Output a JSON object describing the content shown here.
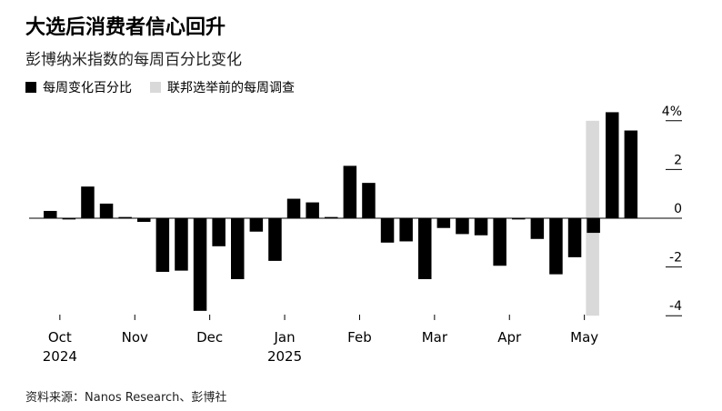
{
  "title": "大选后消费者信心回升",
  "subtitle": "彭博纳米指数的每周百分比变化",
  "source": "资料来源：Nanos Research、彭博社",
  "legend": [
    {
      "label": "每周变化百分比",
      "color": "#000000"
    },
    {
      "label": "联邦选举前的每周调查",
      "color": "#d9d9d9"
    }
  ],
  "chart_data": {
    "type": "bar",
    "title": "大选后消费者信心回升",
    "subtitle": "彭博纳米指数的每周百分比变化",
    "xlabel": "",
    "ylabel": "",
    "ylim": [
      -4.2,
      4.6
    ],
    "y_ticks": [
      4,
      2,
      0,
      -2,
      -4
    ],
    "y_tick_labels": [
      "4%",
      "2",
      "0",
      "-2",
      "-4"
    ],
    "y_axis_side": "right",
    "x_tick_labels": [
      {
        "label": "Oct",
        "year": "2024",
        "week_index": 1
      },
      {
        "label": "Nov",
        "year": "",
        "week_index": 5
      },
      {
        "label": "Dec",
        "year": "",
        "week_index": 9
      },
      {
        "label": "Jan",
        "year": "2025",
        "week_index": 13
      },
      {
        "label": "Feb",
        "year": "",
        "week_index": 17
      },
      {
        "label": "Mar",
        "year": "",
        "week_index": 21
      },
      {
        "label": "Apr",
        "year": "",
        "week_index": 25
      },
      {
        "label": "May",
        "year": "",
        "week_index": 29
      }
    ],
    "series": [
      {
        "name": "每周变化百分比",
        "color": "#000000",
        "values": [
          0.3,
          -0.05,
          1.3,
          0.6,
          0.05,
          -0.15,
          -2.2,
          -2.15,
          -3.8,
          -1.15,
          -2.5,
          -0.55,
          -1.75,
          0.8,
          0.65,
          0.05,
          2.15,
          1.45,
          -1.0,
          -0.95,
          -2.5,
          -0.4,
          -0.65,
          -0.7,
          -1.95,
          -0.05,
          -0.85,
          -2.3,
          -1.6,
          -0.6,
          4.35,
          3.6
        ]
      },
      {
        "name": "联邦选举前的每周调查",
        "color": "#d9d9d9",
        "band_week_index": 29,
        "range": [
          -4.0,
          4.0
        ]
      }
    ]
  }
}
